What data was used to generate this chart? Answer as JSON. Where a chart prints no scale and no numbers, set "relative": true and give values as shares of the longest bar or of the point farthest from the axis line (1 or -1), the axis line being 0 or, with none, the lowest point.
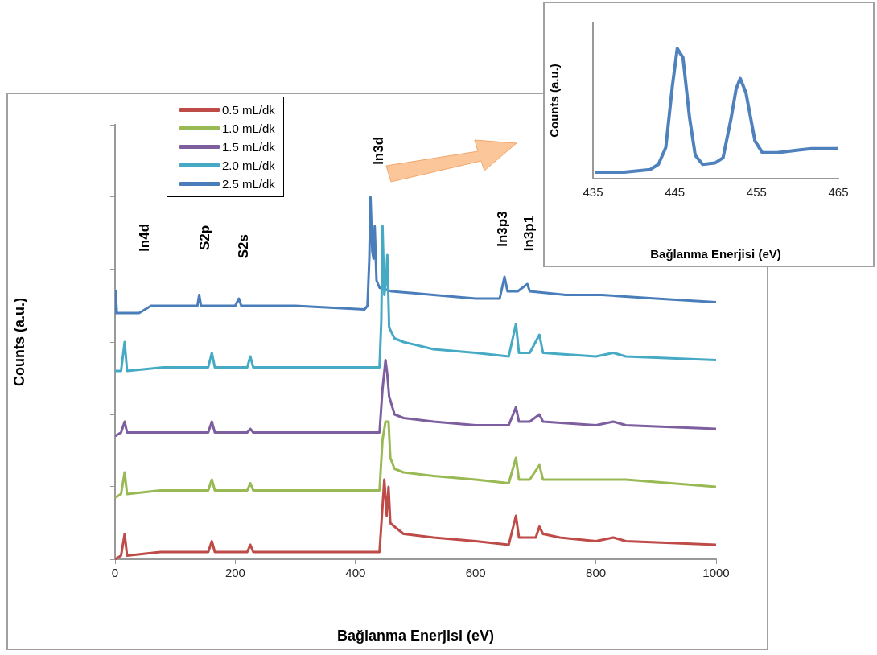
{
  "chart_data": [
    {
      "type": "line",
      "relative": true,
      "xlabel": "Bağlanma Enerjisi (eV)",
      "ylabel": "Counts (a.u.)",
      "xlim": [
        0,
        1000
      ],
      "xticks": [
        0,
        200,
        400,
        600,
        800,
        1000
      ],
      "legend": "top left",
      "annotations": [
        "In4d",
        "S2p",
        "S2s",
        "In3d",
        "In3p3",
        "In3p1"
      ],
      "series": [
        {
          "name": "0.5 mL/dk",
          "color": "#be4b48",
          "x": [
            0,
            10,
            16,
            20,
            75,
            80,
            155,
            161,
            166,
            220,
            225,
            230,
            440,
            444,
            448,
            452,
            455,
            458,
            465,
            480,
            530,
            600,
            655,
            667,
            672,
            690,
            700,
            706,
            712,
            740,
            800,
            829,
            850,
            1000
          ],
          "values": [
            0.0,
            0.01,
            0.07,
            0.01,
            0.02,
            0.02,
            0.02,
            0.05,
            0.02,
            0.02,
            0.04,
            0.02,
            0.02,
            0.12,
            0.22,
            0.12,
            0.2,
            0.1,
            0.09,
            0.07,
            0.06,
            0.05,
            0.04,
            0.12,
            0.06,
            0.06,
            0.06,
            0.09,
            0.07,
            0.06,
            0.05,
            0.06,
            0.05,
            0.04
          ]
        },
        {
          "name": "1.0 mL/dk",
          "color": "#98b954",
          "x": [
            0,
            10,
            16,
            20,
            75,
            80,
            155,
            161,
            166,
            220,
            225,
            230,
            440,
            445,
            450,
            455,
            458,
            465,
            480,
            530,
            600,
            655,
            667,
            672,
            690,
            706,
            712,
            800,
            829,
            850,
            1000
          ],
          "values": [
            0.17,
            0.18,
            0.24,
            0.18,
            0.19,
            0.19,
            0.19,
            0.22,
            0.19,
            0.19,
            0.21,
            0.19,
            0.19,
            0.33,
            0.38,
            0.38,
            0.28,
            0.25,
            0.24,
            0.23,
            0.22,
            0.21,
            0.28,
            0.22,
            0.22,
            0.26,
            0.22,
            0.22,
            0.22,
            0.22,
            0.2
          ]
        },
        {
          "name": "1.5 mL/dk",
          "color": "#7d5fa0",
          "x": [
            0,
            10,
            16,
            20,
            80,
            155,
            161,
            166,
            220,
            225,
            230,
            440,
            445,
            450,
            453,
            456,
            465,
            480,
            530,
            600,
            655,
            667,
            672,
            690,
            706,
            712,
            800,
            829,
            850,
            1000
          ],
          "values": [
            0.34,
            0.35,
            0.38,
            0.35,
            0.35,
            0.35,
            0.38,
            0.35,
            0.35,
            0.36,
            0.35,
            0.35,
            0.47,
            0.55,
            0.51,
            0.45,
            0.4,
            0.39,
            0.38,
            0.37,
            0.37,
            0.42,
            0.38,
            0.38,
            0.4,
            0.38,
            0.37,
            0.38,
            0.37,
            0.36
          ]
        },
        {
          "name": "2.0 mL/dk",
          "color": "#46aac5",
          "x": [
            0,
            10,
            16,
            20,
            80,
            155,
            161,
            166,
            220,
            225,
            230,
            440,
            443,
            445,
            448,
            451,
            453,
            456,
            465,
            480,
            530,
            600,
            655,
            667,
            672,
            690,
            706,
            712,
            800,
            829,
            850,
            1000
          ],
          "values": [
            0.52,
            0.52,
            0.6,
            0.52,
            0.53,
            0.53,
            0.57,
            0.53,
            0.53,
            0.56,
            0.53,
            0.53,
            0.66,
            0.92,
            0.73,
            0.77,
            0.84,
            0.64,
            0.61,
            0.6,
            0.58,
            0.57,
            0.56,
            0.65,
            0.57,
            0.57,
            0.62,
            0.57,
            0.56,
            0.57,
            0.56,
            0.55
          ]
        },
        {
          "name": "2.5 mL/dk",
          "color": "#4a7ebb",
          "x": [
            0,
            1,
            3,
            40,
            60,
            130,
            137,
            140,
            143,
            200,
            206,
            210,
            300,
            415,
            420,
            423,
            425,
            428,
            430,
            432,
            435,
            440,
            460,
            530,
            600,
            640,
            648,
            653,
            670,
            686,
            690,
            750,
            810,
            900,
            1000
          ],
          "values": [
            0.68,
            0.74,
            0.68,
            0.68,
            0.7,
            0.7,
            0.7,
            0.73,
            0.7,
            0.7,
            0.72,
            0.7,
            0.7,
            0.69,
            0.7,
            0.83,
            1.0,
            0.85,
            0.83,
            0.92,
            0.77,
            0.75,
            0.74,
            0.73,
            0.72,
            0.72,
            0.78,
            0.74,
            0.74,
            0.76,
            0.74,
            0.73,
            0.73,
            0.72,
            0.71
          ]
        }
      ]
    },
    {
      "type": "line",
      "relative": true,
      "xlabel": "Bağlanma Enerjisi (eV)",
      "ylabel": "Counts (a.u.)",
      "xlim": [
        435,
        465
      ],
      "xticks": [
        435,
        445,
        455,
        465
      ],
      "series": [
        {
          "color": "#4f81bd",
          "x": [
            435.2,
            438.8,
            442.0,
            443.0,
            443.9,
            444.7,
            445.3,
            446.0,
            446.8,
            447.5,
            448.4,
            449.9,
            450.9,
            451.9,
            452.5,
            453.0,
            453.7,
            454.8,
            455.7,
            457.5,
            460.1,
            461.7,
            465.0
          ],
          "values": [
            0.05,
            0.05,
            0.07,
            0.11,
            0.24,
            0.71,
            1.0,
            0.93,
            0.47,
            0.18,
            0.11,
            0.12,
            0.16,
            0.47,
            0.69,
            0.77,
            0.66,
            0.29,
            0.2,
            0.2,
            0.22,
            0.23,
            0.23
          ]
        }
      ]
    }
  ]
}
